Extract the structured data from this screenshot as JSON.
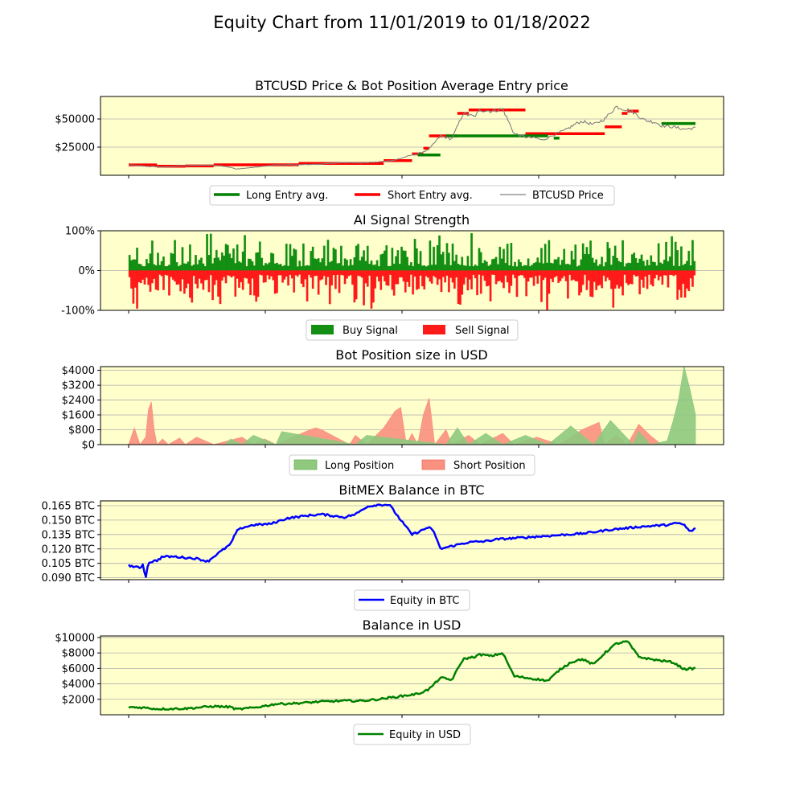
{
  "suptitle": "Equity Chart from 11/01/2019 to 01/18/2022",
  "colors": {
    "panel_bg": "#ffffcc",
    "grid": "#b0b0b0",
    "long": "#008000",
    "short": "#ff0000",
    "price": "#808080",
    "buy": "#138f13",
    "sell": "#ff1a1a",
    "long_pos": "#8ec97e",
    "short_pos": "#f99080",
    "btc_equity": "#0000ff",
    "usd_equity": "#008000"
  },
  "chart_data": [
    {
      "type": "line",
      "title": "BTCUSD Price & Bot Position Average Entry price",
      "x_range": [
        "11/01/2019",
        "01/18/2022"
      ],
      "ylim": [
        0,
        70000
      ],
      "yticks": [
        25000,
        50000
      ],
      "ytick_labels": [
        "$25000",
        "$50000"
      ],
      "grid": true,
      "legend_placement": "bottom",
      "legend": [
        "Long Entry avg.",
        "Short Entry avg.",
        "BTCUSD Price"
      ],
      "series": [
        {
          "name": "BTCUSD Price",
          "x": [
            0,
            0.03,
            0.06,
            0.1,
            0.15,
            0.18,
            0.19,
            0.22,
            0.26,
            0.3,
            0.34,
            0.38,
            0.41,
            0.44,
            0.47,
            0.5,
            0.51,
            0.53,
            0.55,
            0.57,
            0.59,
            0.61,
            0.62,
            0.64,
            0.66,
            0.68,
            0.7,
            0.72,
            0.73,
            0.75,
            0.77,
            0.79,
            0.8,
            0.82,
            0.84,
            0.86,
            0.88,
            0.89,
            0.91,
            0.93,
            0.94,
            0.96,
            0.98,
            1
          ],
          "values": [
            9200,
            8000,
            7300,
            8500,
            9200,
            7000,
            5500,
            7000,
            9200,
            9300,
            10000,
            11500,
            11000,
            11800,
            13500,
            18000,
            19000,
            23000,
            35000,
            32000,
            55000,
            52000,
            58000,
            57000,
            59000,
            37000,
            34000,
            33000,
            31000,
            36000,
            40000,
            46000,
            48000,
            45000,
            50000,
            61000,
            58000,
            56000,
            49000,
            47000,
            44000,
            43000,
            41000,
            42000
          ]
        },
        {
          "name": "Long Entry avg.",
          "x": [
            0.51,
            0.55,
            0.56,
            0.74,
            0.75,
            0.76,
            0.94,
            1
          ],
          "values": [
            18000,
            33000,
            35000,
            32000,
            33000,
            36000,
            46000,
            46000
          ]
        },
        {
          "name": "Short Entry avg.",
          "x": [
            0,
            0.05,
            0.1,
            0.15,
            0.3,
            0.45,
            0.5,
            0.52,
            0.53,
            0.58,
            0.6,
            0.63,
            0.7,
            0.84,
            0.87,
            0.88,
            0.9
          ],
          "values": [
            9200,
            8000,
            8300,
            9300,
            10500,
            13000,
            19000,
            24000,
            35000,
            55000,
            58000,
            58000,
            37000,
            43000,
            55000,
            57000,
            47000
          ]
        }
      ]
    },
    {
      "type": "area",
      "title": "AI Signal Strength",
      "ylim": [
        -100,
        100
      ],
      "yticks": [
        -100,
        0,
        100
      ],
      "ytick_labels": [
        "-100%",
        "0%",
        "100%"
      ],
      "grid": true,
      "legend_placement": "bottom",
      "legend": [
        "Buy Signal",
        "Sell Signal"
      ],
      "series": [
        {
          "name": "Buy Signal",
          "description_range": [
            0,
            100
          ]
        },
        {
          "name": "Sell Signal",
          "description_range": [
            -100,
            0
          ]
        }
      ]
    },
    {
      "type": "area",
      "title": "Bot Position size in USD",
      "ylim": [
        0,
        4200
      ],
      "yticks": [
        0,
        800,
        1600,
        2400,
        3200,
        4000
      ],
      "ytick_labels": [
        "$0",
        "$800",
        "$1600",
        "$2400",
        "$3200",
        "$4000"
      ],
      "grid": true,
      "legend_placement": "bottom",
      "legend": [
        "Long Position",
        "Short Position"
      ],
      "series": [
        {
          "name": "Short Position",
          "x": [
            0,
            0.01,
            0.02,
            0.03,
            0.035,
            0.04,
            0.045,
            0.05,
            0.06,
            0.07,
            0.09,
            0.1,
            0.12,
            0.15,
            0.2,
            0.22,
            0.24,
            0.26,
            0.32,
            0.33,
            0.34,
            0.39,
            0.4,
            0.42,
            0.45,
            0.47,
            0.48,
            0.49,
            0.5,
            0.51,
            0.52,
            0.53,
            0.54,
            0.56,
            0.57,
            0.6,
            0.62,
            0.66,
            0.68,
            0.72,
            0.76,
            0.8,
            0.83,
            0.84,
            0.86,
            0.88,
            0.9,
            0.92,
            0.94
          ],
          "values": [
            0,
            900,
            0,
            400,
            1900,
            2300,
            800,
            0,
            300,
            0,
            350,
            0,
            400,
            0,
            400,
            0,
            300,
            0,
            800,
            900,
            800,
            0,
            500,
            0,
            900,
            1800,
            2000,
            0,
            600,
            0,
            1600,
            2500,
            0,
            800,
            0,
            500,
            0,
            600,
            0,
            400,
            0,
            800,
            1200,
            0,
            500,
            0,
            1100,
            500,
            0
          ]
        },
        {
          "name": "Long Position",
          "x": [
            0,
            0.17,
            0.18,
            0.2,
            0.22,
            0.26,
            0.27,
            0.4,
            0.42,
            0.56,
            0.58,
            0.6,
            0.63,
            0.66,
            0.7,
            0.74,
            0.78,
            0.82,
            0.85,
            0.89,
            0.9,
            0.92,
            0.95,
            0.96,
            0.97,
            0.98,
            0.99,
            1
          ],
          "values": [
            0,
            0,
            300,
            0,
            500,
            0,
            700,
            0,
            500,
            0,
            900,
            0,
            600,
            0,
            500,
            0,
            1000,
            0,
            1300,
            0,
            700,
            0,
            200,
            1200,
            2400,
            4200,
            3000,
            1600
          ]
        }
      ]
    },
    {
      "type": "line",
      "title": "BitMEX Balance in BTC",
      "ylim": [
        0.088,
        0.17
      ],
      "yticks": [
        0.09,
        0.105,
        0.12,
        0.135,
        0.15,
        0.165
      ],
      "ytick_labels": [
        "0.090 BTC",
        "0.105 BTC",
        "0.120 BTC",
        "0.135 BTC",
        "0.150 BTC",
        "0.165 BTC"
      ],
      "grid": true,
      "legend_placement": "bottom",
      "legend": [
        "Equity in BTC"
      ],
      "series": [
        {
          "name": "Equity in BTC",
          "x": [
            0,
            0.02,
            0.025,
            0.03,
            0.035,
            0.05,
            0.06,
            0.08,
            0.12,
            0.14,
            0.15,
            0.18,
            0.19,
            0.2,
            0.22,
            0.25,
            0.28,
            0.32,
            0.34,
            0.38,
            0.4,
            0.42,
            0.44,
            0.46,
            0.48,
            0.5,
            0.52,
            0.53,
            0.54,
            0.55,
            0.57,
            0.6,
            0.63,
            0.65,
            0.7,
            0.75,
            0.8,
            0.85,
            0.9,
            0.95,
            0.97,
            0.98,
            0.99,
            1
          ],
          "values": [
            0.103,
            0.1,
            0.104,
            0.09,
            0.106,
            0.108,
            0.112,
            0.112,
            0.11,
            0.107,
            0.112,
            0.125,
            0.138,
            0.142,
            0.145,
            0.146,
            0.152,
            0.155,
            0.156,
            0.153,
            0.156,
            0.164,
            0.166,
            0.166,
            0.15,
            0.135,
            0.14,
            0.143,
            0.136,
            0.12,
            0.123,
            0.127,
            0.128,
            0.13,
            0.132,
            0.134,
            0.136,
            0.14,
            0.143,
            0.145,
            0.147,
            0.145,
            0.138,
            0.141
          ]
        }
      ]
    },
    {
      "type": "line",
      "title": "Balance in USD",
      "ylim": [
        0,
        10200
      ],
      "yticks": [
        2000,
        4000,
        6000,
        8000,
        10000
      ],
      "ytick_labels": [
        "$2000",
        "$4000",
        "$6000",
        "$8000",
        "$10000"
      ],
      "grid": true,
      "legend_placement": "bottom",
      "legend": [
        "Equity in USD"
      ],
      "series": [
        {
          "name": "Equity in USD",
          "x": [
            0,
            0.03,
            0.05,
            0.1,
            0.15,
            0.18,
            0.19,
            0.22,
            0.26,
            0.3,
            0.34,
            0.38,
            0.41,
            0.44,
            0.47,
            0.5,
            0.51,
            0.53,
            0.55,
            0.57,
            0.59,
            0.61,
            0.62,
            0.64,
            0.66,
            0.68,
            0.7,
            0.72,
            0.74,
            0.76,
            0.78,
            0.8,
            0.82,
            0.84,
            0.86,
            0.88,
            0.9,
            0.92,
            0.94,
            0.96,
            0.98,
            1
          ],
          "values": [
            1000,
            900,
            750,
            800,
            1100,
            1000,
            700,
            900,
            1400,
            1500,
            1700,
            1800,
            1800,
            2000,
            2300,
            2600,
            2700,
            3300,
            4800,
            4500,
            7200,
            7500,
            7800,
            7600,
            8000,
            5000,
            4800,
            4600,
            4400,
            5800,
            6800,
            7200,
            6500,
            8000,
            9200,
            9500,
            7500,
            7200,
            7000,
            6800,
            5900,
            6000
          ]
        }
      ]
    }
  ]
}
